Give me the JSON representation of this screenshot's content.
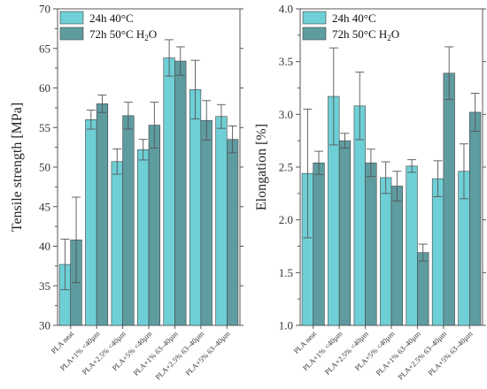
{
  "colors": {
    "series_a": "#6fcfd6",
    "series_b": "#5e9ca0",
    "error": "#555555"
  },
  "legend": {
    "a_label": "24h 40°C",
    "b_label_prefix": "72h 50°C H",
    "b_label_sub": "2",
    "b_label_suffix": "O"
  },
  "chart_data": [
    {
      "type": "bar",
      "title": "",
      "xlabel": "",
      "ylabel": "Tensile strength [MPa]",
      "ylim": [
        30,
        70
      ],
      "yticks": [
        30,
        35,
        40,
        45,
        50,
        55,
        60,
        65,
        70
      ],
      "grid": false,
      "legend_position": "top-left",
      "categories": [
        "PLA neat",
        "PLA+1% <40µm",
        "PLA+2.5% <40µm",
        "PLA+5% <40µm",
        "PLA+1% 63–40µm",
        "PLA+2.5% 63–40µm",
        "PLA+5% 63–40µm"
      ],
      "series": [
        {
          "name": "24h 40°C",
          "values": [
            37.7,
            56.0,
            50.7,
            52.2,
            63.8,
            59.8,
            56.4
          ],
          "errors": [
            3.2,
            1.2,
            1.6,
            1.3,
            2.3,
            3.7,
            1.5
          ]
        },
        {
          "name": "72h 50°C H2O",
          "values": [
            40.8,
            58.0,
            56.5,
            55.3,
            63.4,
            55.9,
            53.5
          ],
          "errors": [
            5.4,
            1.1,
            1.7,
            2.9,
            1.8,
            2.5,
            1.7
          ]
        }
      ]
    },
    {
      "type": "bar",
      "title": "",
      "xlabel": "",
      "ylabel": "Elongation [%]",
      "ylim": [
        1.0,
        4.0
      ],
      "yticks": [
        "1.0",
        "1.5",
        "2.0",
        "2.5",
        "3.0",
        "3.5",
        "4.0"
      ],
      "grid": false,
      "legend_position": "top-left",
      "categories": [
        "PLA neat",
        "PLA+1% <40µm",
        "PLA+2.5% <40µm",
        "PLA+5% <40µm",
        "PLA+1% 63–40µm",
        "PLA+2.5% 63–40µm",
        "PLA+5% 63–40µm"
      ],
      "series": [
        {
          "name": "24h 40°C",
          "values": [
            2.44,
            3.17,
            3.08,
            2.4,
            2.51,
            2.39,
            2.46
          ],
          "errors": [
            0.61,
            0.46,
            0.32,
            0.15,
            0.06,
            0.17,
            0.26
          ]
        },
        {
          "name": "72h 50°C H2O",
          "values": [
            2.54,
            2.75,
            2.54,
            2.32,
            1.69,
            3.39,
            3.02
          ],
          "errors": [
            0.11,
            0.07,
            0.13,
            0.14,
            0.08,
            0.25,
            0.18
          ]
        }
      ]
    }
  ]
}
